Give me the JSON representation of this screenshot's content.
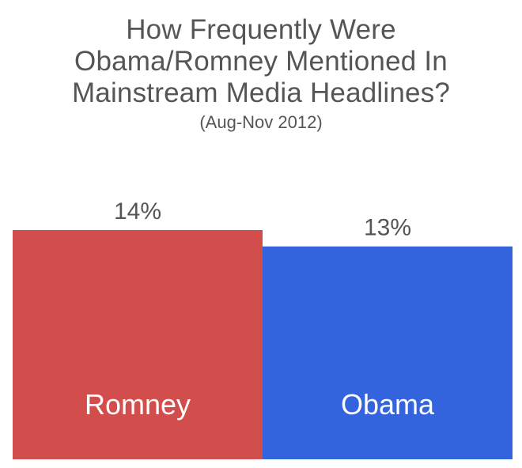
{
  "chart_data": {
    "type": "bar",
    "title_lines": [
      "How Frequently Were",
      "Obama/Romney Mentioned In",
      "Mainstream Media Headlines?"
    ],
    "subtitle": "(Aug-Nov 2012)",
    "categories": [
      "Romney",
      "Obama"
    ],
    "values": [
      14,
      13
    ],
    "value_labels": [
      "14%",
      "13%"
    ],
    "colors": [
      "#d24e4c",
      "#3363dd"
    ],
    "ylim": [
      0,
      14
    ],
    "grid": false,
    "legend": "none"
  }
}
